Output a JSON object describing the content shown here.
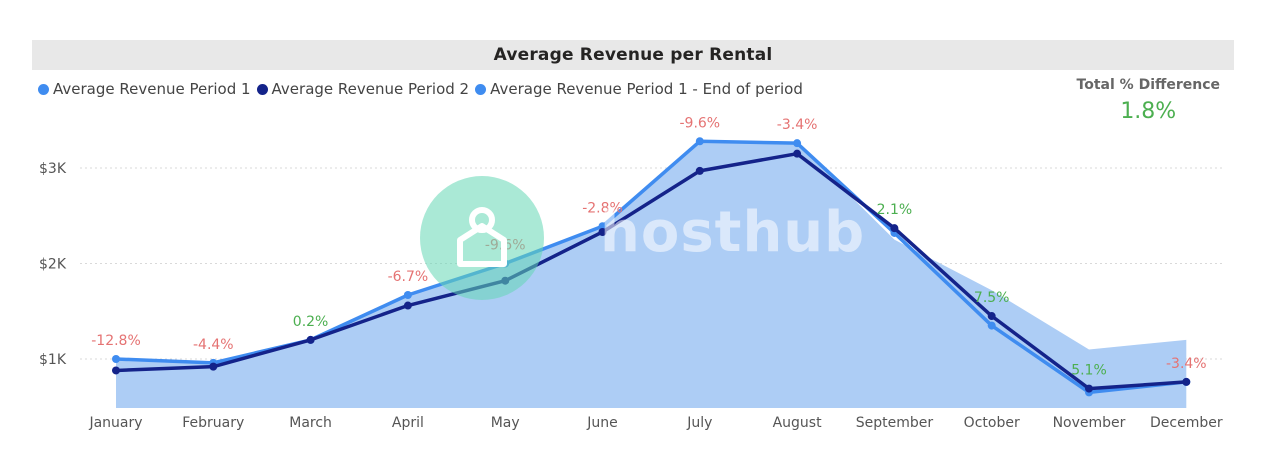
{
  "colors": {
    "period1": "#3f8cf0",
    "period2": "#14238a",
    "area": "#adcdf5",
    "negative": "#e57373",
    "positive": "#4caf50",
    "grid": "#d9d9d9",
    "axis_text": "#555555"
  },
  "kpi": {
    "label": "Total % Difference",
    "value": "1.8%"
  },
  "chart_data": {
    "type": "line",
    "title": "Average Revenue per Rental",
    "categories": [
      "January",
      "February",
      "March",
      "April",
      "May",
      "June",
      "July",
      "August",
      "September",
      "October",
      "November",
      "December"
    ],
    "series": [
      {
        "name": "Average Revenue Period 1",
        "values": [
          1000,
          960,
          1200,
          1670,
          2000,
          2390,
          3280,
          3260,
          2320,
          1350,
          650,
          760
        ]
      },
      {
        "name": "Average Revenue Period 2",
        "values": [
          880,
          920,
          1200,
          1560,
          1820,
          2330,
          2970,
          3150,
          2370,
          1450,
          690,
          760
        ]
      },
      {
        "name": "Average Revenue Period 1 - End of period",
        "values": [
          1000,
          960,
          1200,
          1670,
          2000,
          2390,
          3280,
          3260,
          2250,
          1720,
          1100,
          1200
        ]
      }
    ],
    "data_labels": [
      "-12.8%",
      "-4.4%",
      "0.2%",
      "-6.7%",
      "-9.6%",
      "-2.8%",
      "-9.6%",
      "-3.4%",
      "2.1%",
      "7.5%",
      "5.1%",
      "-3.4%"
    ],
    "y_ticks": [
      {
        "value": 1000,
        "label": "$1K"
      },
      {
        "value": 2000,
        "label": "$2K"
      },
      {
        "value": 3000,
        "label": "$3K"
      }
    ],
    "ylim": [
      500,
      3500
    ],
    "grid": true,
    "legend_position": "top-left",
    "watermark": "hosthub"
  }
}
